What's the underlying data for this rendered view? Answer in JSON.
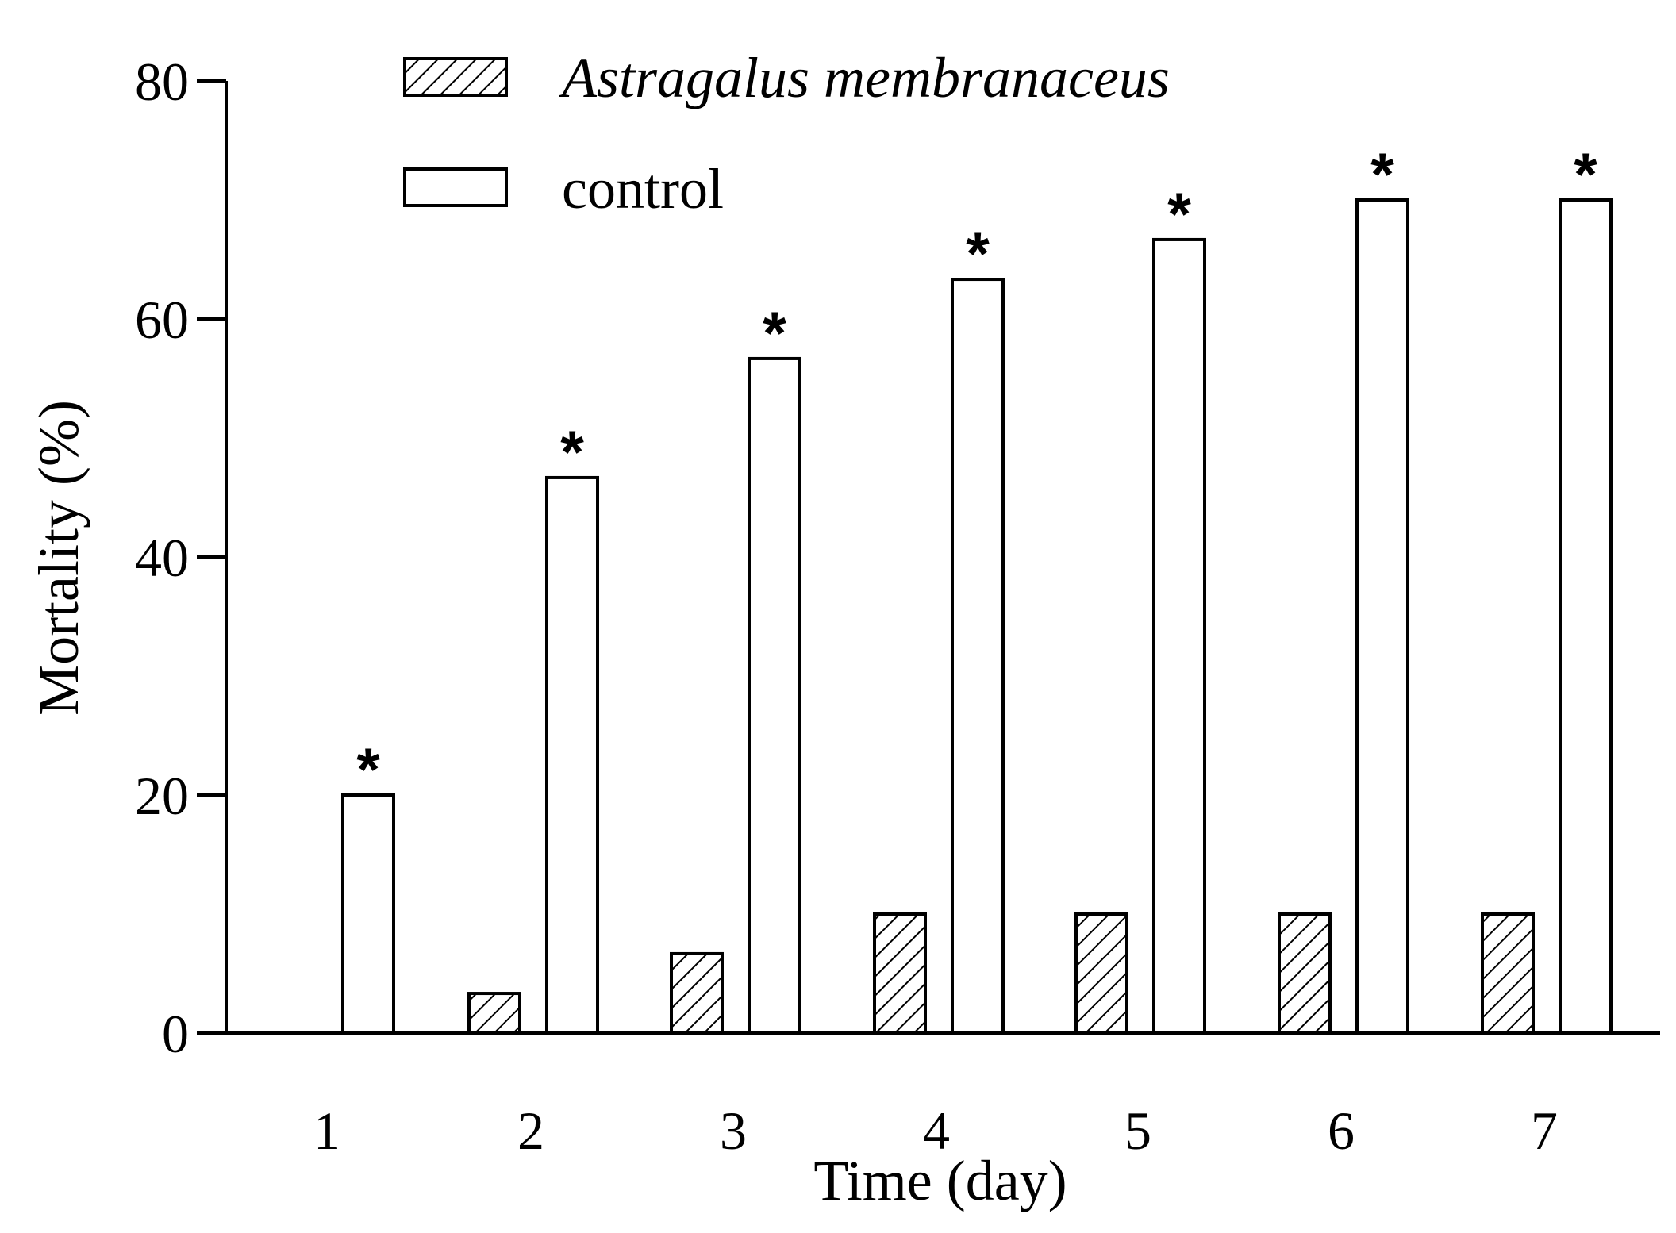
{
  "chart_data": {
    "type": "bar",
    "title": "",
    "xlabel": "Time (day)",
    "ylabel": "Mortality (%)",
    "ylim": [
      0,
      80
    ],
    "yticks": [
      0,
      20,
      40,
      60,
      80
    ],
    "categories": [
      "1",
      "2",
      "3",
      "4",
      "5",
      "6",
      "7"
    ],
    "series": [
      {
        "name": "Astragalus membranaceus",
        "pattern": "hatched",
        "values": [
          0,
          3.33,
          6.67,
          10,
          10,
          10,
          10
        ]
      },
      {
        "name": "control",
        "pattern": "open",
        "values": [
          20,
          46.67,
          56.67,
          63.33,
          66.67,
          70,
          70
        ]
      }
    ],
    "annotations": {
      "marker": "*",
      "series": "control",
      "categories": [
        "1",
        "2",
        "3",
        "4",
        "5",
        "6",
        "7"
      ]
    },
    "legend_position": "top-center",
    "grid": false
  },
  "colors": {
    "axis": "#000000",
    "bar_fill": "#ffffff",
    "hatch": "#000000"
  }
}
